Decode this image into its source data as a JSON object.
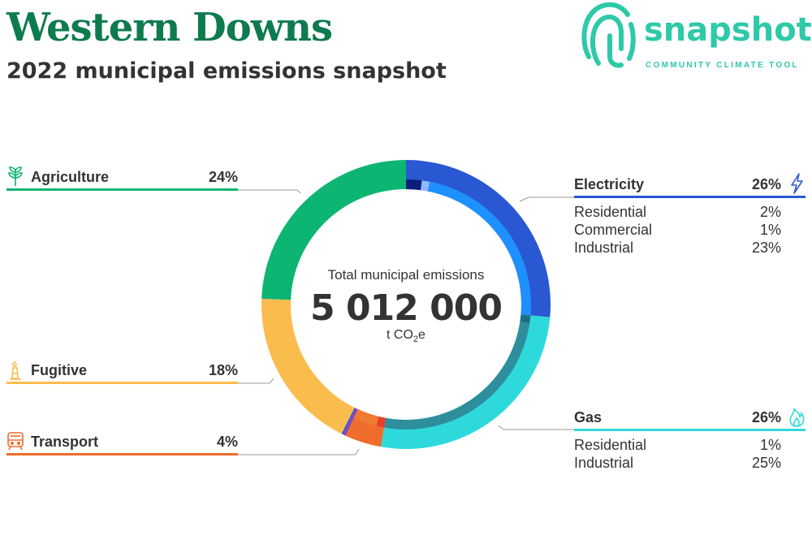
{
  "header": {
    "title": "Western Downs",
    "subtitle": "2022 municipal emissions snapshot"
  },
  "logo": {
    "wordmark": "snapshot",
    "tagline": "COMMUNITY CLIMATE TOOL",
    "color": "#2ec9a8"
  },
  "center": {
    "label": "Total municipal emissions",
    "total": "5 012 000",
    "unit_prefix": "t CO",
    "unit_sub": "2",
    "unit_suffix": "e"
  },
  "legend": {
    "agriculture": {
      "name": "Agriculture",
      "pct": "24%",
      "color": "#0db573",
      "icon": "sprout-icon"
    },
    "fugitive": {
      "name": "Fugitive",
      "pct": "18%",
      "color": "#fbbc4e",
      "icon": "flare-stack-icon"
    },
    "transport": {
      "name": "Transport",
      "pct": "4%",
      "color": "#ef6c2c",
      "icon": "train-icon"
    },
    "electricity": {
      "name": "Electricity",
      "pct": "26%",
      "color": "#2a58d2",
      "icon": "lightning-icon",
      "subs": [
        {
          "name": "Residential",
          "pct": "2%"
        },
        {
          "name": "Commercial",
          "pct": "1%"
        },
        {
          "name": "Industrial",
          "pct": "23%"
        }
      ]
    },
    "gas": {
      "name": "Gas",
      "pct": "26%",
      "color": "#2ed9dc",
      "icon": "flame-icon",
      "subs": [
        {
          "name": "Residential",
          "pct": "1%"
        },
        {
          "name": "Industrial",
          "pct": "25%"
        }
      ]
    }
  },
  "chart_data": {
    "type": "pie",
    "style": "donut",
    "title": "2022 municipal emissions snapshot",
    "total": 5012000,
    "unit": "t CO2e",
    "series": [
      {
        "name": "Electricity",
        "value": 26,
        "color": "#2a58d2",
        "breakdown": [
          {
            "name": "Residential",
            "value": 2,
            "color": "#0b1f7a"
          },
          {
            "name": "Commercial",
            "value": 1,
            "color": "#8fb8ff"
          },
          {
            "name": "Industrial",
            "value": 23,
            "color": "#1e90ff"
          }
        ]
      },
      {
        "name": "Gas",
        "value": 26,
        "color": "#2ed9dc",
        "breakdown": [
          {
            "name": "Residential",
            "value": 1,
            "color": "#1c6f80"
          },
          {
            "name": "Industrial",
            "value": 25,
            "color": "#2e8e9c"
          }
        ]
      },
      {
        "name": "Transport",
        "value": 4,
        "color": "#ef6c2c",
        "breakdown": [
          {
            "name": "",
            "value": 1,
            "color": "#e8402c"
          },
          {
            "name": "",
            "value": 3,
            "color": "#ef7a34"
          }
        ]
      },
      {
        "name": "",
        "value": 0.3,
        "color": "#8e44ad"
      },
      {
        "name": "",
        "value": 0.2,
        "color": "#3355dd"
      },
      {
        "name": "Fugitive",
        "value": 18,
        "color": "#fbbc4e"
      },
      {
        "name": "Agriculture",
        "value": 24,
        "color": "#0db573"
      }
    ]
  }
}
